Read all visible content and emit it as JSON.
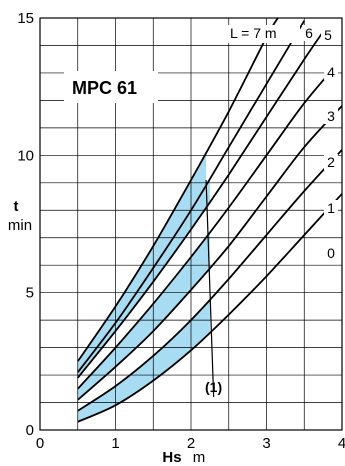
{
  "chart_data": {
    "type": "line",
    "title": "MPC 61",
    "xlabel": {
      "symbol": "Hs",
      "unit": "m"
    },
    "ylabel": {
      "symbol": "t",
      "unit": "min"
    },
    "xlim": [
      0,
      4
    ],
    "ylim": [
      0,
      15
    ],
    "xticks": [
      "0",
      "1",
      "2",
      "3",
      "4"
    ],
    "yticks": [
      "0",
      "5",
      "10",
      "15"
    ],
    "grid": true,
    "series": [
      {
        "name": "0",
        "points": [
          [
            0.5,
            0.3
          ],
          [
            1.0,
            0.9
          ],
          [
            1.5,
            1.8
          ],
          [
            2.0,
            2.9
          ],
          [
            2.5,
            4.2
          ],
          [
            3.0,
            5.6
          ],
          [
            3.5,
            7.1
          ],
          [
            4.0,
            8.6
          ]
        ]
      },
      {
        "name": "1",
        "points": [
          [
            0.5,
            0.7
          ],
          [
            1.0,
            1.6
          ],
          [
            1.5,
            2.7
          ],
          [
            2.0,
            4.0
          ],
          [
            2.5,
            5.5
          ],
          [
            3.0,
            7.1
          ],
          [
            3.5,
            8.7
          ],
          [
            4.0,
            10.2
          ]
        ]
      },
      {
        "name": "2",
        "points": [
          [
            0.5,
            1.1
          ],
          [
            1.0,
            2.3
          ],
          [
            1.5,
            3.6
          ],
          [
            2.0,
            5.1
          ],
          [
            2.5,
            6.7
          ],
          [
            3.0,
            8.5
          ],
          [
            3.5,
            10.3
          ],
          [
            4.0,
            11.8
          ]
        ]
      },
      {
        "name": "3",
        "points": [
          [
            0.5,
            1.5
          ],
          [
            1.0,
            3.0
          ],
          [
            1.5,
            4.6
          ],
          [
            2.0,
            6.3
          ],
          [
            2.5,
            8.1
          ],
          [
            3.0,
            10.0
          ],
          [
            3.5,
            11.9
          ],
          [
            3.9,
            13.2
          ]
        ]
      },
      {
        "name": "4",
        "points": [
          [
            0.5,
            1.9
          ],
          [
            1.0,
            3.6
          ],
          [
            1.5,
            5.4
          ],
          [
            2.0,
            7.3
          ],
          [
            2.5,
            9.3
          ],
          [
            3.0,
            11.4
          ],
          [
            3.5,
            13.5
          ],
          [
            3.75,
            14.5
          ]
        ]
      },
      {
        "name": "5",
        "points": [
          [
            0.5,
            2.1
          ],
          [
            1.0,
            3.9
          ],
          [
            1.5,
            5.9
          ],
          [
            2.0,
            8.0
          ],
          [
            2.5,
            10.3
          ],
          [
            3.0,
            12.6
          ],
          [
            3.5,
            14.9
          ]
        ]
      },
      {
        "name": "6",
        "points": [
          [
            0.5,
            2.5
          ],
          [
            1.0,
            4.5
          ],
          [
            1.5,
            6.7
          ],
          [
            2.0,
            9.1
          ],
          [
            2.5,
            11.6
          ],
          [
            3.0,
            14.3
          ],
          [
            3.15,
            15.0
          ]
        ]
      }
    ],
    "curve_label_prefix": "L = 7 m",
    "shaded_region_color": "#a8dcf2",
    "annotation": {
      "label": "(1)",
      "boundary": [
        [
          2.2,
          9.1
        ],
        [
          2.3,
          1.2
        ]
      ]
    }
  }
}
